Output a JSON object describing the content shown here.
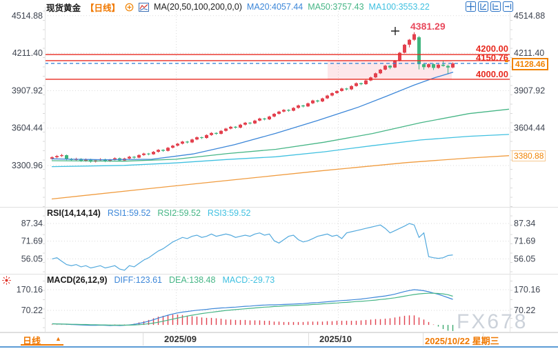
{
  "header": {
    "symbol": "现货黄金",
    "period_tag": "【日线】",
    "ma_settings": "MA(20,50,100,200,0,0)",
    "ma20_label": "MA20:4057.44",
    "ma50_label": "MA50:3757.43",
    "ma100_label": "MA100:3553.22"
  },
  "toolbar": {
    "icons": [
      "move-crosshair",
      "scale-y-axis",
      "scale-x-axis",
      "go-to-latest"
    ]
  },
  "bottom_bar": {
    "interval_label": "日线",
    "interval_arrow": "▲",
    "months": [
      {
        "label": "2025/09",
        "x": 255
      },
      {
        "label": "2025/10",
        "x": 490
      }
    ],
    "current_date_label": "2025/10/22 星期三"
  },
  "watermark": "FX678",
  "colors": {
    "up": "#e3414e",
    "down": "#3fb57e",
    "ma20": "#3b86d8",
    "ma50": "#45b585",
    "ma100": "#3fc0e0",
    "ma200": "#f09b3e",
    "hline": "#e82a20",
    "band": "rgba(242,108,126,0.16)",
    "last_price_line": "#3b86d8",
    "accent_orange": "#f08200",
    "hist_up": "#e0404d",
    "hist_down": "#3aa76d",
    "axis_text": "#3e4450",
    "grid": "#d9d9d9",
    "rsi_line": "#52a9dd",
    "bottom_line": "#5b9bd5"
  },
  "chart_data": {
    "type": "candlestick-with-indicators",
    "title": "现货黄金 日线",
    "legend_position": "top",
    "grid": true,
    "main": {
      "price_ticks": [
        4514.88,
        4211.4,
        3907.92,
        3604.44,
        3300.96
      ],
      "ylim": [
        3030,
        4560
      ],
      "candles_ohlc": [
        [
          3355,
          3376,
          3348,
          3368
        ],
        [
          3368,
          3386,
          3360,
          3378
        ],
        [
          3378,
          3395,
          3370,
          3385
        ],
        [
          3385,
          3390,
          3344,
          3352
        ],
        [
          3352,
          3362,
          3338,
          3346
        ],
        [
          3346,
          3364,
          3340,
          3355
        ],
        [
          3355,
          3360,
          3330,
          3338
        ],
        [
          3338,
          3358,
          3332,
          3352
        ],
        [
          3352,
          3356,
          3324,
          3332
        ],
        [
          3332,
          3350,
          3326,
          3344
        ],
        [
          3344,
          3360,
          3338,
          3352
        ],
        [
          3352,
          3357,
          3328,
          3336
        ],
        [
          3336,
          3354,
          3330,
          3348
        ],
        [
          3348,
          3367,
          3342,
          3360
        ],
        [
          3360,
          3365,
          3334,
          3342
        ],
        [
          3342,
          3364,
          3336,
          3358
        ],
        [
          3358,
          3379,
          3352,
          3372
        ],
        [
          3372,
          3377,
          3357,
          3365
        ],
        [
          3365,
          3392,
          3360,
          3386
        ],
        [
          3386,
          3404,
          3380,
          3398
        ],
        [
          3398,
          3403,
          3384,
          3392
        ],
        [
          3392,
          3418,
          3388,
          3412
        ],
        [
          3412,
          3434,
          3406,
          3428
        ],
        [
          3428,
          3433,
          3412,
          3420
        ],
        [
          3420,
          3451,
          3415,
          3445
        ],
        [
          3445,
          3468,
          3440,
          3462
        ],
        [
          3462,
          3484,
          3456,
          3478
        ],
        [
          3478,
          3501,
          3472,
          3495
        ],
        [
          3495,
          3500,
          3480,
          3488
        ],
        [
          3488,
          3518,
          3483,
          3512
        ],
        [
          3512,
          3536,
          3506,
          3530
        ],
        [
          3530,
          3535,
          3516,
          3524
        ],
        [
          3524,
          3554,
          3519,
          3548
        ],
        [
          3548,
          3571,
          3542,
          3565
        ],
        [
          3565,
          3570,
          3550,
          3558
        ],
        [
          3558,
          3588,
          3553,
          3582
        ],
        [
          3582,
          3606,
          3576,
          3600
        ],
        [
          3600,
          3621,
          3594,
          3615
        ],
        [
          3615,
          3620,
          3600,
          3608
        ],
        [
          3608,
          3638,
          3603,
          3632
        ],
        [
          3632,
          3654,
          3626,
          3648
        ],
        [
          3648,
          3653,
          3634,
          3642
        ],
        [
          3642,
          3671,
          3637,
          3665
        ],
        [
          3665,
          3688,
          3660,
          3682
        ],
        [
          3682,
          3687,
          3667,
          3675
        ],
        [
          3675,
          3704,
          3670,
          3698
        ],
        [
          3698,
          3726,
          3692,
          3720
        ],
        [
          3720,
          3744,
          3714,
          3738
        ],
        [
          3738,
          3758,
          3732,
          3752
        ],
        [
          3752,
          3757,
          3737,
          3745
        ],
        [
          3745,
          3774,
          3740,
          3768
        ],
        [
          3768,
          3794,
          3762,
          3788
        ],
        [
          3788,
          3793,
          3772,
          3780
        ],
        [
          3780,
          3811,
          3775,
          3805
        ],
        [
          3805,
          3834,
          3800,
          3828
        ],
        [
          3828,
          3833,
          3812,
          3820
        ],
        [
          3820,
          3851,
          3815,
          3845
        ],
        [
          3845,
          3874,
          3840,
          3868
        ],
        [
          3868,
          3894,
          3862,
          3888
        ],
        [
          3888,
          3911,
          3882,
          3905
        ],
        [
          3905,
          3931,
          3900,
          3925
        ],
        [
          3925,
          3930,
          3910,
          3918
        ],
        [
          3918,
          3951,
          3913,
          3945
        ],
        [
          3945,
          3974,
          3940,
          3968
        ],
        [
          3968,
          3973,
          3952,
          3960
        ],
        [
          3960,
          3996,
          3955,
          3990
        ],
        [
          3990,
          4021,
          3985,
          4015
        ],
        [
          4015,
          4054,
          4010,
          4048
        ],
        [
          4048,
          4084,
          4042,
          4078
        ],
        [
          4078,
          4116,
          4072,
          4110
        ],
        [
          4110,
          4115,
          4082,
          4095
        ],
        [
          4095,
          4156,
          4090,
          4150
        ],
        [
          4150,
          4221,
          4145,
          4215
        ],
        [
          4215,
          4286,
          4210,
          4280
        ],
        [
          4280,
          4326,
          4258,
          4320
        ],
        [
          4320,
          4381.29,
          4310,
          4365
        ],
        [
          4340,
          4350,
          4080,
          4122
        ],
        [
          4122,
          4130,
          4078,
          4098
        ],
        [
          4098,
          4128,
          4090,
          4122
        ],
        [
          4122,
          4127,
          4075,
          4092
        ],
        [
          4092,
          4124,
          4086,
          4118
        ],
        [
          4118,
          4152,
          4102,
          4108
        ],
        [
          4108,
          4118,
          4040,
          4095
        ],
        [
          4095,
          4138,
          4088,
          4128.46
        ]
      ],
      "ma_lines": {
        "ma20": {
          "points": [
            [
              75,
              3355
            ],
            [
              150,
              3348
            ],
            [
              220,
              3352
            ],
            [
              280,
              3395
            ],
            [
              340,
              3470
            ],
            [
              400,
              3562
            ],
            [
              460,
              3665
            ],
            [
              520,
              3775
            ],
            [
              560,
              3862
            ],
            [
              600,
              3952
            ],
            [
              630,
              4012
            ],
            [
              657,
              4057.44
            ]
          ]
        },
        "ma50": {
          "points": [
            [
              75,
              3340
            ],
            [
              180,
              3336
            ],
            [
              255,
              3352
            ],
            [
              330,
              3398
            ],
            [
              400,
              3432
            ],
            [
              470,
              3490
            ],
            [
              540,
              3560
            ],
            [
              610,
              3648
            ],
            [
              680,
              3722
            ],
            [
              738,
              3757.43
            ]
          ]
        },
        "ma100": {
          "points": [
            [
              75,
              3292
            ],
            [
              180,
              3302
            ],
            [
              255,
              3322
            ],
            [
              330,
              3350
            ],
            [
              400,
              3372
            ],
            [
              470,
              3412
            ],
            [
              540,
              3462
            ],
            [
              610,
              3508
            ],
            [
              680,
              3538
            ],
            [
              738,
              3553.22
            ]
          ]
        },
        "ma200": {
          "points": [
            [
              75,
              3030
            ],
            [
              200,
              3105
            ],
            [
              330,
              3180
            ],
            [
              460,
              3255
            ],
            [
              590,
              3325
            ],
            [
              680,
              3362
            ],
            [
              738,
              3380.88
            ]
          ]
        }
      },
      "hlines": [
        {
          "price": 4200.0,
          "label": "4200.00"
        },
        {
          "price": 4150.76,
          "label": "4150.76"
        },
        {
          "price": 4000.0,
          "label": "4000.00"
        }
      ],
      "band": {
        "x1": 475,
        "x2": 655,
        "price_top": 4150.76,
        "price_bottom": 4000.0
      },
      "last_price": 4128.46,
      "last_price_label": "4128.46",
      "ma200_axis_label": "3380.88",
      "high_annotation": {
        "label": "4381.29",
        "price": 4381.29,
        "marker_x": 573,
        "marker_y": 45
      }
    },
    "rsi": {
      "title": "RSI(14,14,14)",
      "labels": [
        "RSI1:59.52",
        "RSI2:59.52",
        "RSI3:59.52"
      ],
      "ticks": [
        87.34,
        71.69,
        56.05
      ],
      "series": [
        56,
        57,
        54,
        51,
        50,
        51,
        49,
        50,
        48,
        49,
        50,
        48,
        49,
        50,
        47,
        46,
        50,
        49,
        52,
        55,
        57,
        60,
        63,
        65,
        68,
        71,
        73,
        75,
        74,
        76,
        77,
        75,
        76,
        78,
        76,
        77,
        78,
        77,
        75,
        76,
        77,
        76,
        78,
        79,
        77,
        78,
        72,
        70,
        73,
        76,
        77,
        73,
        71,
        72,
        74,
        76,
        77,
        78,
        76,
        77,
        74,
        79,
        80,
        81,
        82,
        83,
        84,
        85,
        86,
        83,
        79,
        81,
        83,
        85,
        87.34,
        86,
        75,
        79,
        58,
        57,
        56.5,
        57,
        59,
        59.52
      ]
    },
    "macd": {
      "title": "MACD(26,12,9)",
      "labels": [
        "DIFF:123.61",
        "DEA:138.48",
        "MACD:-29.73"
      ],
      "ticks": [
        170.16,
        70.22
      ],
      "diff": [
        6,
        5,
        4,
        3,
        2,
        1,
        0,
        -1,
        -2,
        -2,
        -1,
        -2,
        -3,
        -2,
        -3,
        -2,
        0,
        3,
        7,
        12,
        18,
        25,
        33,
        40,
        47,
        53,
        58,
        62,
        65,
        68,
        71,
        73,
        75,
        78,
        80,
        82,
        83,
        85,
        86,
        88,
        90,
        91,
        93,
        95,
        96,
        97,
        97,
        98,
        99,
        100,
        101,
        102,
        103,
        105,
        107,
        108,
        110,
        112,
        114,
        116,
        118,
        119,
        121,
        123,
        125,
        128,
        131,
        134,
        137,
        140,
        144,
        149,
        155,
        161,
        166,
        170.16,
        168,
        165,
        160,
        154,
        148,
        140,
        132,
        123.61
      ],
      "dea": [
        5,
        5,
        4,
        4,
        3,
        3,
        2,
        2,
        1,
        1,
        0,
        0,
        -1,
        -1,
        -1,
        -1,
        -1,
        0,
        1,
        3,
        6,
        9,
        13,
        18,
        23,
        28,
        33,
        38,
        43,
        47,
        51,
        55,
        58,
        61,
        64,
        67,
        70,
        72,
        74,
        76,
        78,
        80,
        82,
        84,
        86,
        87,
        89,
        90,
        92,
        93,
        94,
        95,
        96,
        97,
        99,
        100,
        102,
        103,
        105,
        106,
        108,
        109,
        111,
        113,
        114,
        116,
        118,
        120,
        123,
        125,
        128,
        131,
        135,
        139,
        143,
        147,
        150,
        152,
        153,
        153,
        152,
        150,
        146,
        138.48
      ],
      "hist": [
        2,
        1,
        1,
        1,
        2,
        1,
        1,
        2,
        1,
        1,
        2,
        1,
        1,
        2,
        1,
        2,
        2,
        6,
        12,
        18,
        24,
        32,
        40,
        44,
        48,
        50,
        50,
        48,
        44,
        42,
        40,
        36,
        34,
        34,
        32,
        30,
        26,
        26,
        24,
        24,
        24,
        22,
        22,
        22,
        20,
        20,
        16,
        16,
        14,
        14,
        14,
        14,
        14,
        16,
        16,
        16,
        16,
        18,
        18,
        20,
        20,
        20,
        20,
        20,
        22,
        24,
        26,
        28,
        28,
        30,
        32,
        36,
        40,
        44,
        46,
        46,
        36,
        26,
        14,
        2,
        -8,
        -20,
        -28,
        -29.73
      ]
    },
    "x_axis": {
      "month_gridlines_x": [
        255,
        490
      ],
      "month_labels": [
        "2025/09",
        "2025/10"
      ],
      "last_date": "2025/10/22 星期三"
    }
  }
}
